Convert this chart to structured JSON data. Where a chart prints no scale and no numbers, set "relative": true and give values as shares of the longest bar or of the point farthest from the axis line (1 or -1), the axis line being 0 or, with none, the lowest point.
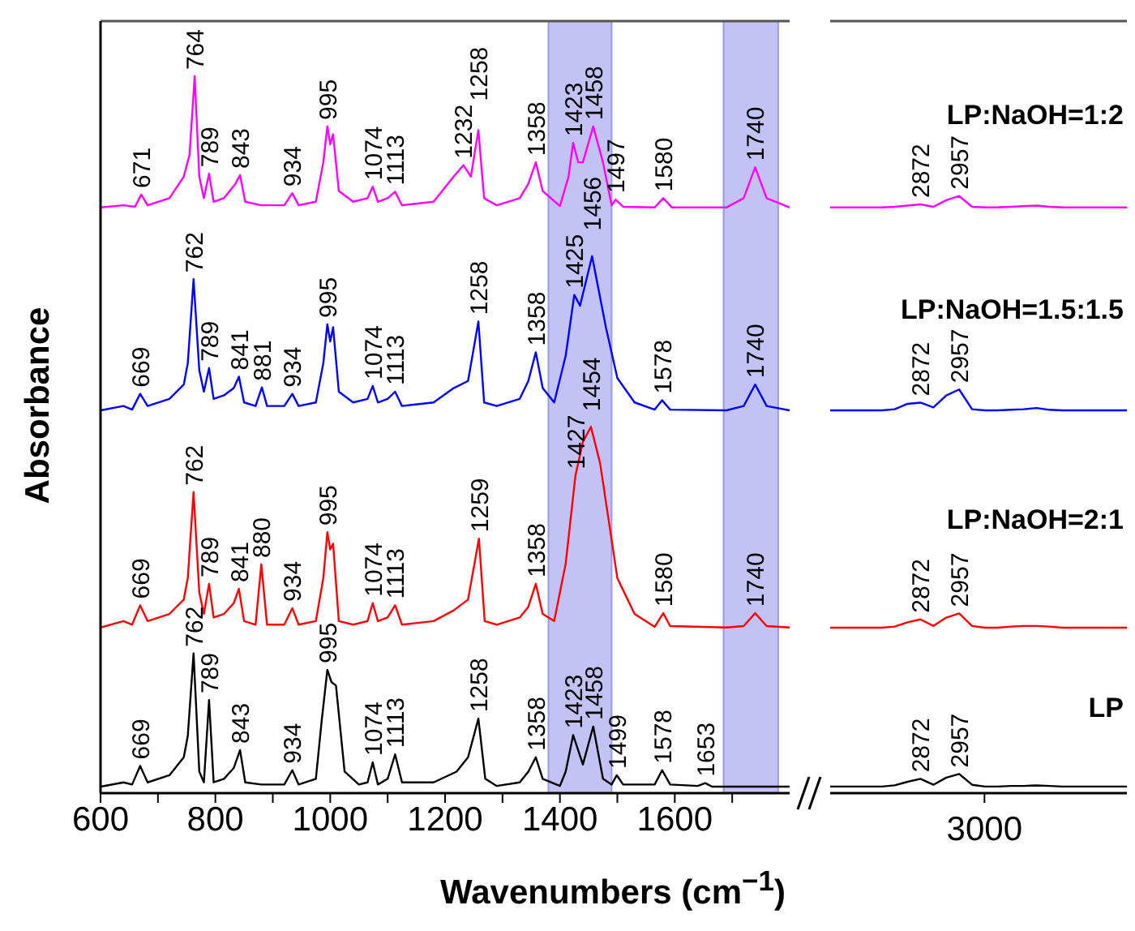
{
  "chart_data": [
    {
      "type": "line",
      "relative": true,
      "xlabel": "Wavenumbers (cm$^{−1}$)",
      "ylabel": "Absorbance",
      "xlim": [
        600,
        1800
      ],
      "xticks": [
        600,
        {
          "value": 700,
          "label": null
        },
        800,
        {
          "value": 900,
          "label": null
        },
        1000,
        {
          "value": 1100,
          "label": null
        },
        1200,
        {
          "value": 1300,
          "label": null
        },
        1400,
        {
          "value": 1500,
          "label": null
        },
        1600,
        {
          "value": 1700,
          "label": null
        }
      ],
      "tick_labels": "x",
      "bands": [
        {
          "axis": "x",
          "from": 1380,
          "to": 1490,
          "color": "#9999ee"
        },
        {
          "axis": "x",
          "from": 1685,
          "to": 1780,
          "color": "#9999ee"
        }
      ],
      "series": [
        {
          "color": "#ff00ff",
          "x": [
            600,
            640,
            660,
            671,
            682,
            720,
            745,
            755,
            764,
            772,
            780,
            789,
            797,
            815,
            835,
            843,
            852,
            880,
            920,
            934,
            945,
            975,
            988,
            995,
            1000,
            1005,
            1015,
            1040,
            1065,
            1074,
            1083,
            1100,
            1113,
            1125,
            1180,
            1215,
            1232,
            1245,
            1258,
            1268,
            1290,
            1330,
            1345,
            1358,
            1370,
            1400,
            1415,
            1423,
            1432,
            1440,
            1458,
            1475,
            1490,
            1497,
            1510,
            1565,
            1580,
            1595,
            1690,
            1720,
            1740,
            1760,
            1800
          ],
          "values": [
            0.817,
            0.82,
            0.818,
            0.835,
            0.82,
            0.83,
            0.86,
            0.89,
            1.0,
            0.86,
            0.83,
            0.864,
            0.825,
            0.83,
            0.85,
            0.862,
            0.825,
            0.82,
            0.82,
            0.837,
            0.82,
            0.825,
            0.88,
            0.93,
            0.905,
            0.919,
            0.84,
            0.825,
            0.83,
            0.846,
            0.825,
            0.83,
            0.839,
            0.82,
            0.825,
            0.86,
            0.876,
            0.86,
            0.925,
            0.83,
            0.82,
            0.83,
            0.85,
            0.88,
            0.84,
            0.819,
            0.86,
            0.907,
            0.88,
            0.88,
            0.93,
            0.88,
            0.82,
            0.828,
            0.818,
            0.817,
            0.83,
            0.817,
            0.817,
            0.83,
            0.873,
            0.83,
            0.817
          ]
        },
        {
          "color": "#0000ff",
          "x": [
            600,
            640,
            655,
            669,
            682,
            720,
            745,
            752,
            762,
            772,
            780,
            789,
            797,
            815,
            832,
            841,
            850,
            870,
            881,
            890,
            920,
            934,
            945,
            975,
            988,
            995,
            1000,
            1005,
            1015,
            1040,
            1065,
            1074,
            1083,
            1100,
            1113,
            1125,
            1180,
            1215,
            1240,
            1258,
            1268,
            1290,
            1330,
            1345,
            1358,
            1370,
            1390,
            1410,
            1425,
            1435,
            1456,
            1480,
            1500,
            1530,
            1565,
            1578,
            1592,
            1690,
            1720,
            1740,
            1760,
            1800
          ],
          "values": [
            0.534,
            0.54,
            0.535,
            0.557,
            0.54,
            0.55,
            0.57,
            0.6,
            0.717,
            0.59,
            0.56,
            0.593,
            0.55,
            0.555,
            0.565,
            0.581,
            0.545,
            0.54,
            0.566,
            0.54,
            0.54,
            0.557,
            0.54,
            0.545,
            0.6,
            0.654,
            0.63,
            0.65,
            0.56,
            0.545,
            0.55,
            0.568,
            0.545,
            0.55,
            0.56,
            0.54,
            0.545,
            0.565,
            0.575,
            0.658,
            0.545,
            0.54,
            0.55,
            0.575,
            0.615,
            0.565,
            0.545,
            0.61,
            0.695,
            0.68,
            0.749,
            0.65,
            0.579,
            0.545,
            0.535,
            0.548,
            0.535,
            0.534,
            0.54,
            0.57,
            0.54,
            0.534
          ]
        },
        {
          "color": "#ff0000",
          "x": [
            600,
            640,
            655,
            669,
            682,
            720,
            745,
            752,
            762,
            772,
            780,
            789,
            797,
            815,
            832,
            841,
            850,
            870,
            880,
            890,
            920,
            934,
            945,
            975,
            988,
            995,
            1000,
            1005,
            1015,
            1040,
            1065,
            1074,
            1083,
            1100,
            1113,
            1125,
            1180,
            1215,
            1240,
            1259,
            1269,
            1290,
            1330,
            1345,
            1358,
            1370,
            1390,
            1410,
            1427,
            1440,
            1454,
            1470,
            1500,
            1530,
            1565,
            1580,
            1592,
            1690,
            1720,
            1740,
            1760,
            1800
          ],
          "values": [
            0.231,
            0.24,
            0.235,
            0.262,
            0.24,
            0.25,
            0.27,
            0.3,
            0.42,
            0.28,
            0.25,
            0.292,
            0.245,
            0.25,
            0.265,
            0.285,
            0.24,
            0.235,
            0.319,
            0.235,
            0.235,
            0.258,
            0.235,
            0.24,
            0.3,
            0.364,
            0.34,
            0.348,
            0.24,
            0.235,
            0.24,
            0.265,
            0.24,
            0.245,
            0.262,
            0.235,
            0.24,
            0.255,
            0.27,
            0.355,
            0.24,
            0.235,
            0.245,
            0.26,
            0.292,
            0.25,
            0.24,
            0.32,
            0.443,
            0.49,
            0.511,
            0.46,
            0.3,
            0.25,
            0.232,
            0.251,
            0.233,
            0.231,
            0.233,
            0.251,
            0.233,
            0.231
          ]
        },
        {
          "color": "#000000",
          "x": [
            600,
            640,
            655,
            669,
            682,
            720,
            745,
            752,
            762,
            772,
            780,
            789,
            797,
            815,
            832,
            843,
            852,
            880,
            920,
            934,
            945,
            975,
            985,
            995,
            1002,
            1010,
            1025,
            1050,
            1065,
            1074,
            1083,
            1100,
            1113,
            1125,
            1180,
            1220,
            1240,
            1258,
            1270,
            1290,
            1330,
            1345,
            1358,
            1370,
            1400,
            1410,
            1423,
            1440,
            1458,
            1475,
            1490,
            1499,
            1510,
            1565,
            1578,
            1592,
            1640,
            1653,
            1665,
            1800
          ],
          "values": [
            0.009,
            0.015,
            0.012,
            0.038,
            0.015,
            0.025,
            0.05,
            0.08,
            0.195,
            0.03,
            0.015,
            0.13,
            0.015,
            0.02,
            0.035,
            0.06,
            0.015,
            0.012,
            0.012,
            0.032,
            0.012,
            0.02,
            0.1,
            0.172,
            0.155,
            0.15,
            0.03,
            0.012,
            0.015,
            0.043,
            0.012,
            0.02,
            0.054,
            0.015,
            0.015,
            0.03,
            0.05,
            0.104,
            0.02,
            0.01,
            0.015,
            0.03,
            0.05,
            0.02,
            0.01,
            0.03,
            0.081,
            0.04,
            0.093,
            0.02,
            0.012,
            0.025,
            0.012,
            0.012,
            0.032,
            0.012,
            0.01,
            0.014,
            0.009,
            0.009
          ]
        }
      ],
      "annotations": [
        {
          "text": "671",
          "x": 671,
          "y": 0.835
        },
        {
          "text": "764",
          "x": 764,
          "y": 1.0
        },
        {
          "text": "789",
          "x": 789,
          "y": 0.864
        },
        {
          "text": "843",
          "x": 843,
          "y": 0.862
        },
        {
          "text": "934",
          "x": 934,
          "y": 0.837
        },
        {
          "text": "995",
          "x": 995,
          "y": 0.93
        },
        {
          "text": "1074",
          "x": 1074,
          "y": 0.846
        },
        {
          "text": "1113",
          "x": 1113,
          "y": 0.839
        },
        {
          "text": "1232",
          "x": 1232,
          "y": 0.876
        },
        {
          "text": "1258",
          "x": 1258,
          "y": 0.925
        },
        {
          "text": "1358",
          "x": 1358,
          "y": 0.88
        },
        {
          "text": "1423",
          "x": 1423,
          "y": 0.907
        },
        {
          "text": "1458",
          "x": 1458,
          "y": 0.93
        },
        {
          "text": "1497",
          "x": 1497,
          "y": 0.828
        },
        {
          "text": "1580",
          "x": 1580,
          "y": 0.83
        },
        {
          "text": "1740",
          "x": 1740,
          "y": 0.873
        },
        {
          "text": "669",
          "x": 669,
          "y": 0.557
        },
        {
          "text": "762",
          "x": 762,
          "y": 0.717
        },
        {
          "text": "789",
          "x": 789,
          "y": 0.593
        },
        {
          "text": "841",
          "x": 841,
          "y": 0.581
        },
        {
          "text": "881",
          "x": 881,
          "y": 0.566
        },
        {
          "text": "934",
          "x": 934,
          "y": 0.557
        },
        {
          "text": "995",
          "x": 995,
          "y": 0.654
        },
        {
          "text": "1074",
          "x": 1074,
          "y": 0.568
        },
        {
          "text": "1113",
          "x": 1113,
          "y": 0.56
        },
        {
          "text": "1258",
          "x": 1258,
          "y": 0.658
        },
        {
          "text": "1358",
          "x": 1358,
          "y": 0.615
        },
        {
          "text": "1425",
          "x": 1425,
          "y": 0.695
        },
        {
          "text": "1456",
          "x": 1456,
          "y": 0.749
        },
        {
          "text": "1578",
          "x": 1578,
          "y": 0.548
        },
        {
          "text": "1740",
          "x": 1740,
          "y": 0.57
        },
        {
          "text": "669",
          "x": 669,
          "y": 0.262
        },
        {
          "text": "762",
          "x": 762,
          "y": 0.42
        },
        {
          "text": "789",
          "x": 789,
          "y": 0.292
        },
        {
          "text": "841",
          "x": 841,
          "y": 0.285
        },
        {
          "text": "880",
          "x": 880,
          "y": 0.319
        },
        {
          "text": "934",
          "x": 934,
          "y": 0.258
        },
        {
          "text": "995",
          "x": 995,
          "y": 0.364
        },
        {
          "text": "1074",
          "x": 1074,
          "y": 0.265
        },
        {
          "text": "1113",
          "x": 1113,
          "y": 0.262
        },
        {
          "text": "1259",
          "x": 1259,
          "y": 0.355
        },
        {
          "text": "1358",
          "x": 1358,
          "y": 0.292
        },
        {
          "text": "1427",
          "x": 1427,
          "y": 0.443
        },
        {
          "text": "1454",
          "x": 1454,
          "y": 0.511
        },
        {
          "text": "1580",
          "x": 1580,
          "y": 0.251
        },
        {
          "text": "1740",
          "x": 1740,
          "y": 0.251
        },
        {
          "text": "669",
          "x": 669,
          "y": 0.038
        },
        {
          "text": "762",
          "x": 762,
          "y": 0.195
        },
        {
          "text": "789",
          "x": 789,
          "y": 0.13
        },
        {
          "text": "843",
          "x": 843,
          "y": 0.06
        },
        {
          "text": "934",
          "x": 934,
          "y": 0.032
        },
        {
          "text": "995",
          "x": 995,
          "y": 0.172
        },
        {
          "text": "1074",
          "x": 1074,
          "y": 0.043
        },
        {
          "text": "1113",
          "x": 1113,
          "y": 0.054
        },
        {
          "text": "1258",
          "x": 1258,
          "y": 0.104
        },
        {
          "text": "1358",
          "x": 1358,
          "y": 0.05
        },
        {
          "text": "1423",
          "x": 1423,
          "y": 0.081
        },
        {
          "text": "1458",
          "x": 1458,
          "y": 0.093
        },
        {
          "text": "1499",
          "x": 1499,
          "y": 0.025
        },
        {
          "text": "1578",
          "x": 1578,
          "y": 0.032
        },
        {
          "text": "1653",
          "x": 1653,
          "y": 0.014
        }
      ]
    },
    {
      "type": "line",
      "relative": true,
      "categories": [
        null,
        null,
        null,
        null,
        null,
        null,
        null,
        null,
        null,
        null,
        null,
        null,
        null,
        null,
        null,
        null,
        null,
        null,
        null,
        null,
        null,
        null,
        null,
        null
      ],
      "tick_labels": "x",
      "series": [
        {
          "name": "LP:NaOH=1:2",
          "color": "#ff00ff",
          "values": [
            0.981,
            0.981,
            0.981,
            0.981,
            0.981,
            0.982,
            0.984,
            0.986,
            0.982,
            0.993,
            1,
            0.982,
            0.981,
            0.981,
            0.982,
            0.983,
            0.984,
            0.982,
            0.981,
            0.981,
            0.981,
            0.981,
            0.981,
            0.981
          ]
        },
        {
          "name": "LP:NaOH=1.5:1.5",
          "color": "#0000ff",
          "values": [
            0.641,
            0.641,
            0.641,
            0.641,
            0.641,
            0.643,
            0.652,
            0.654,
            0.646,
            0.666,
            0.676,
            0.643,
            0.641,
            0.641,
            0.642,
            0.643,
            0.645,
            0.642,
            0.641,
            0.641,
            0.641,
            0.641,
            0.641,
            0.641
          ]
        },
        {
          "name": "LP:NaOH=2:1",
          "color": "#ff0000",
          "values": [
            0.277,
            0.277,
            0.277,
            0.277,
            0.277,
            0.279,
            0.286,
            0.291,
            0.28,
            0.294,
            0.301,
            0.28,
            0.277,
            0.277,
            0.279,
            0.28,
            0.28,
            0.279,
            0.277,
            0.277,
            0.277,
            0.277,
            0.277,
            0.277
          ]
        },
        {
          "name": "LP",
          "color": "#000000",
          "values": [
            0.011,
            0.011,
            0.011,
            0.011,
            0.011,
            0.013,
            0.019,
            0.024,
            0.014,
            0.026,
            0.032,
            0.014,
            0.011,
            0.011,
            0.012,
            0.012,
            0.013,
            0.012,
            0.011,
            0.011,
            0.011,
            0.011,
            0.011,
            0.011
          ]
        }
      ],
      "annotations": [
        "3000",
        {
          "text": "2872",
          "y": 0.986
        },
        {
          "text": "2957",
          "y": 1
        },
        {
          "text": "2872",
          "y": 0.654
        },
        {
          "text": "2957",
          "y": 0.676
        },
        {
          "text": "2872",
          "y": 0.291
        },
        {
          "text": "2957",
          "y": 0.301
        },
        {
          "text": "2872",
          "y": 0.024
        },
        {
          "text": "2957",
          "y": 0.032
        }
      ]
    }
  ]
}
